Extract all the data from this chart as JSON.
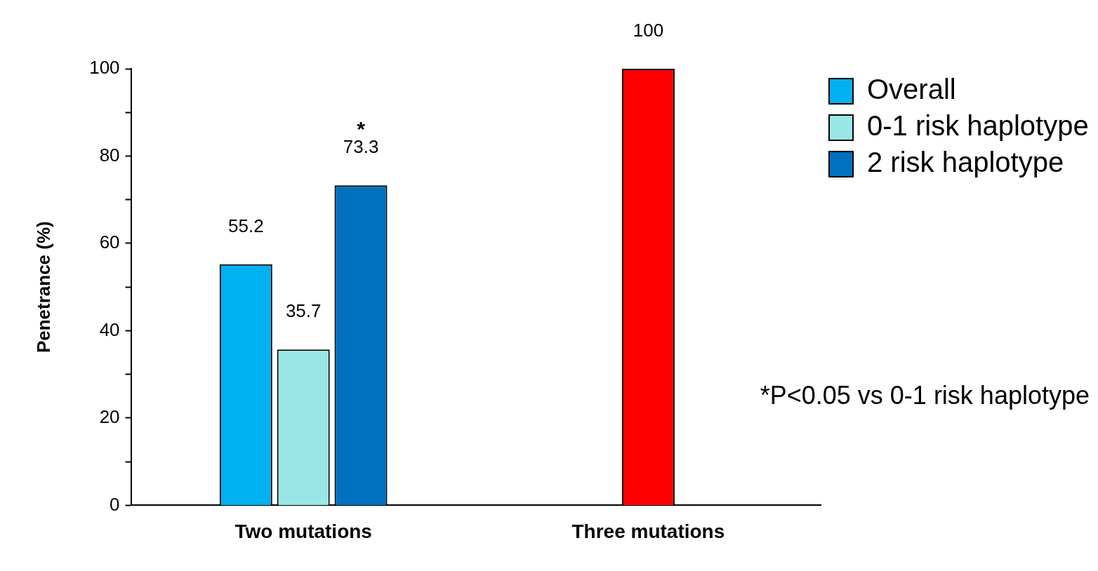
{
  "chart_data": {
    "type": "bar",
    "categories": [
      "Two mutations",
      "Three mutations"
    ],
    "ylabel": "Penetrance (%)",
    "ylim": [
      0,
      100
    ],
    "yticks": [
      0,
      {
        "value": 10,
        "label": null
      },
      20,
      {
        "value": 30,
        "label": null
      },
      40,
      {
        "value": 50,
        "label": null
      },
      60,
      {
        "value": 70,
        "label": null
      },
      80,
      {
        "value": 90,
        "label": null
      },
      100
    ],
    "series": [
      {
        "name": "Overall",
        "color": "#00b0f0",
        "values": [
          55.2,
          null
        ]
      },
      {
        "name": "0-1 risk haplotype",
        "color": "#99e6e6",
        "values": [
          35.7,
          null
        ]
      },
      {
        "name": "2 risk haplotype",
        "color": "#0070c0",
        "values": [
          73.3,
          null
        ]
      },
      {
        "color": "#ff0000",
        "values": [
          null,
          100
        ]
      }
    ],
    "data_labels": true,
    "annotations": [
      "*",
      "*P<0.05 vs 0-1 risk haplotype"
    ],
    "legend": "right",
    "grid": false
  }
}
